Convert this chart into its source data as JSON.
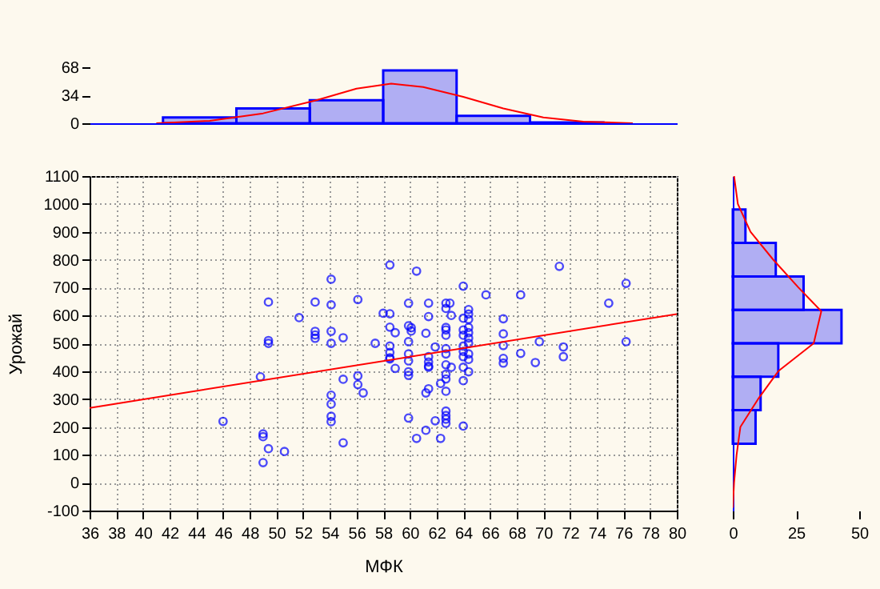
{
  "chart_data": [
    {
      "type": "histogram",
      "bins": [
        41.5,
        47,
        52.5,
        58,
        63.5,
        69,
        74.5
      ],
      "xlim": [
        36,
        80
      ],
      "ylim": [
        0,
        68
      ],
      "yticks": [
        0,
        34,
        68
      ],
      "tick_labels": "y",
      "series": [
        {
          "type": "histogram",
          "color": "#0000ff",
          "values": [
            7,
            18,
            28,
            64,
            9,
            1
          ]
        },
        {
          "type": "line",
          "color": "#ff0000",
          "x": [
            41,
            45,
            49,
            53,
            56,
            58.6,
            61,
            64,
            67,
            70,
            73,
            76.7
          ],
          "values": [
            0,
            3,
            12,
            28,
            42,
            48,
            44,
            32,
            18,
            7,
            2,
            0
          ]
        }
      ]
    },
    {
      "type": "scatter",
      "xlabel": "МФК",
      "ylabel": "Урожай",
      "xlim": [
        36,
        80
      ],
      "xticks": [
        36,
        38,
        40,
        42,
        44,
        46,
        48,
        50,
        52,
        54,
        56,
        58,
        60,
        62,
        64,
        66,
        68,
        70,
        72,
        74,
        76,
        78,
        80
      ],
      "ylim": [
        -100,
        1100
      ],
      "yticks": [
        -100,
        0,
        100,
        200,
        300,
        400,
        500,
        600,
        700,
        800,
        900,
        1000,
        1100
      ],
      "grid": true,
      "series": [
        {
          "type": "scatter",
          "color": "#0000ff",
          "marker": "circle",
          "x": [
            46,
            48.8,
            49,
            49,
            49,
            49.4,
            49.4,
            49.4,
            49.4,
            50.6,
            51.7,
            52.9,
            52.9,
            52.9,
            52.9,
            54.1,
            54.1,
            54.1,
            54.1,
            54.1,
            54.1,
            54.1,
            54.1,
            55,
            55,
            55,
            56.1,
            56.1,
            56.1,
            56.5,
            57.4,
            58,
            58.5,
            58.5,
            58.5,
            58.5,
            58.5,
            58.5,
            58.5,
            58.9,
            58.9,
            59.9,
            59.9,
            59.9,
            60.1,
            60.1,
            59.9,
            59.9,
            59.9,
            59.9,
            59.9,
            60.5,
            60.5,
            61.2,
            61.4,
            61.4,
            61.2,
            61.4,
            61.4,
            61.4,
            61.4,
            61.4,
            61.2,
            61.9,
            61.9,
            62.3,
            62.3,
            62.7,
            63,
            62.7,
            62.7,
            63.1,
            62.7,
            62.7,
            62.7,
            62.7,
            62.7,
            62.7,
            62.7,
            62.7,
            62.7,
            62.7,
            62.7,
            62.7,
            63.1,
            64,
            64,
            64,
            64,
            64.4,
            64.4,
            64.4,
            64.4,
            64.4,
            64.4,
            64.4,
            64,
            64,
            64,
            64.4,
            64.4,
            64,
            64.4,
            64,
            64,
            65.7,
            67,
            67,
            67,
            67,
            67,
            68.3,
            68.3,
            69.4,
            69.7,
            71.2,
            71.5,
            71.5,
            74.9,
            76.2,
            76.2
          ],
          "values": [
            220,
            380,
            175,
            165,
            72,
            648,
            510,
            500,
            122,
            112,
            592,
            648,
            543,
            530,
            518,
            219,
            730,
            638,
            543,
            500,
            314,
            282,
            238,
            143,
            520,
            371,
            352,
            657,
            383,
            322,
            500,
            608,
            448,
            781,
            606,
            558,
            490,
            467,
            444,
            410,
            538,
            437,
            644,
            563,
            544,
            556,
            506,
            462,
            398,
            385,
            232,
            159,
            759,
            188,
            596,
            644,
            536,
            414,
            418,
            452,
            433,
            337,
            322,
            222,
            487,
            356,
            159,
            213,
            644,
            644,
            625,
            600,
            557,
            548,
            529,
            481,
            462,
            423,
            389,
            372,
            328,
            257,
            241,
            228,
            414,
            705,
            590,
            548,
            529,
            621,
            605,
            586,
            557,
            538,
            519,
            500,
            490,
            471,
            452,
            462,
            442,
            414,
            398,
            366,
            203,
            674,
            588,
            534,
            492,
            446,
            429,
            674,
            464,
            431,
            506,
            776,
            487,
            452,
            644,
            715,
            506
          ]
        },
        {
          "type": "line",
          "color": "#ff0000",
          "x": [
            36,
            80
          ],
          "values": [
            268,
            605
          ]
        }
      ]
    },
    {
      "type": "histogram",
      "orientation": "horizontal",
      "bins": [
        140,
        260,
        380,
        500,
        620,
        740,
        860,
        980
      ],
      "xlim": [
        0,
        50
      ],
      "xticks": [
        0,
        25,
        50
      ],
      "ylim": [
        -100,
        1100
      ],
      "tick_labels": "x",
      "series": [
        {
          "type": "histogram",
          "color": "#0000ff",
          "values": [
            9,
            11,
            18,
            43,
            28,
            17,
            5
          ]
        },
        {
          "type": "line",
          "color": "#ff0000",
          "x": [
            -90,
            0,
            100,
            200,
            300,
            400,
            500,
            615,
            700,
            800,
            900,
            1000,
            1100
          ],
          "values": [
            0,
            0.5,
            1.5,
            3,
            10,
            18,
            32,
            35,
            26,
            16,
            7,
            2,
            0.5
          ]
        }
      ]
    }
  ]
}
